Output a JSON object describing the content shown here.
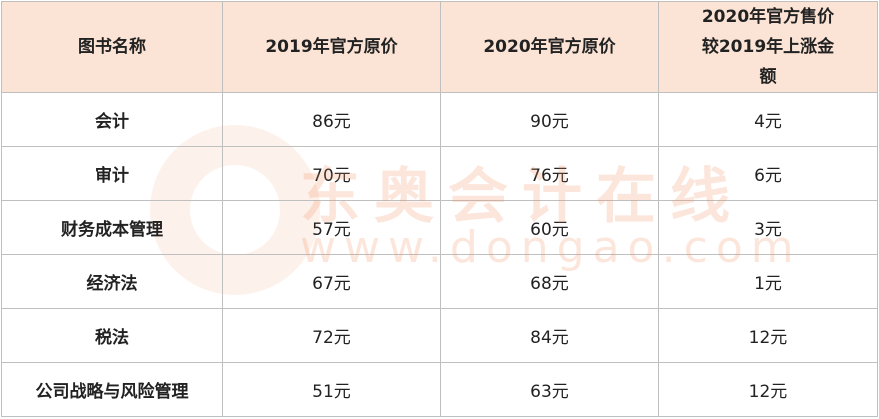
{
  "table": {
    "header": [
      "图书名称",
      "2019年官方原价",
      "2020年官方原价",
      "2020年官方售价较2019年上涨金额"
    ],
    "rows": [
      [
        "会计",
        "86元",
        "90元",
        "4元"
      ],
      [
        "审计",
        "70元",
        "76元",
        "6元"
      ],
      [
        "财务成本管理",
        "57元",
        "60元",
        "3元"
      ],
      [
        "经济法",
        "67元",
        "68元",
        "1元"
      ],
      [
        "税法",
        "72元",
        "84元",
        "12元"
      ],
      [
        "公司战略与风险管理",
        "51元",
        "63元",
        "12元"
      ]
    ]
  },
  "watermark": {
    "brand": "东奥会计在线",
    "url": "www.dongao.com"
  }
}
